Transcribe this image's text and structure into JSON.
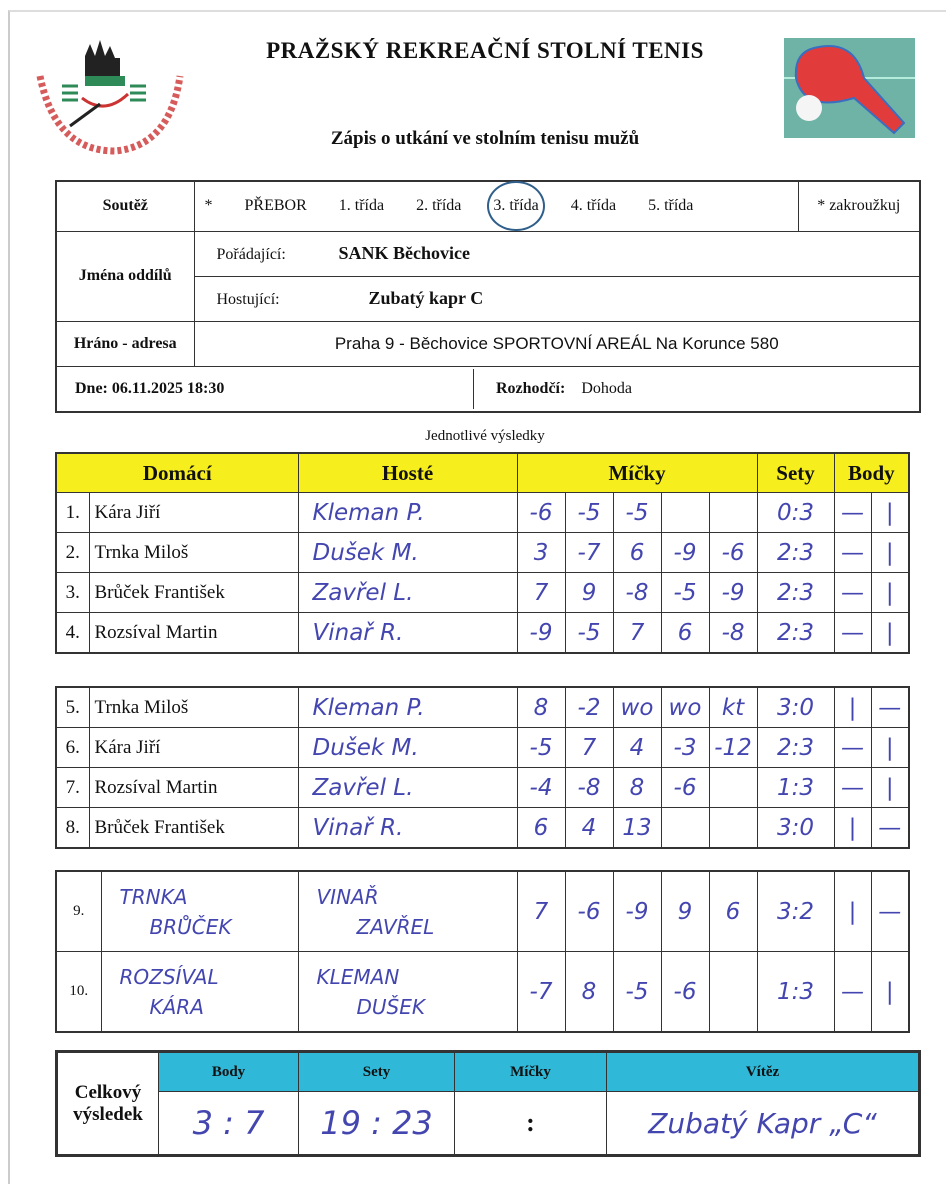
{
  "header": {
    "title": "PRAŽSKÝ  REKREAČNÍ  STOLNÍ  TENIS",
    "subtitle": "Zápis o utkání ve stolním tenisu mužů",
    "logo_text": "PRST – PRAŽSKÝ REKREAČNÍ STOLNÍ TENIS"
  },
  "info": {
    "soutez_label": "Soutěž",
    "star": "*",
    "options": [
      "PŘEBOR",
      "1. třída",
      "2. třída",
      "3. třída",
      "4. třída",
      "5. třída"
    ],
    "selected_option": "3. třída",
    "note": "* zakroužkuj",
    "jmena_label": "Jména  oddílů",
    "poradajici_label": "Pořádající:",
    "poradajici": "SANK Běchovice",
    "hostujici_label": "Hostující:",
    "hostujici": "Zubatý kapr C",
    "hrano_label": "Hráno - adresa",
    "adresa": "Praha 9 - Běchovice SPORTOVNÍ AREÁL Na Korunce 580",
    "dne_label": "Dne:",
    "dne": "06.11.2025 18:30",
    "rozhodci_label": "Rozhodčí:",
    "rozhodci": "Dohoda"
  },
  "results_caption": "Jednotlivé výsledky",
  "columns": {
    "domaci": "Domácí",
    "hoste": "Hosté",
    "micky": "Míčky",
    "sety": "Sety",
    "body": "Body"
  },
  "blocks": [
    [
      {
        "n": "1.",
        "home": "Kára Jiří",
        "guest": "Kleman P.",
        "balls": [
          "-6",
          "-5",
          "-5",
          "",
          ""
        ],
        "sets": "0:3",
        "b1": "—",
        "b2": "|"
      },
      {
        "n": "2.",
        "home": "Trnka Miloš",
        "guest": "Dušek M.",
        "balls": [
          "3",
          "-7",
          "6",
          "-9",
          "-6"
        ],
        "sets": "2:3",
        "b1": "—",
        "b2": "|"
      },
      {
        "n": "3.",
        "home": "Brůček František",
        "guest": "Zavřel L.",
        "balls": [
          "7",
          "9",
          "-8",
          "-5",
          "-9"
        ],
        "sets": "2:3",
        "b1": "—",
        "b2": "|"
      },
      {
        "n": "4.",
        "home": "Rozsíval Martin",
        "guest": "Vinař R.",
        "balls": [
          "-9",
          "-5",
          "7",
          "6",
          "-8"
        ],
        "sets": "2:3",
        "b1": "—",
        "b2": "|"
      }
    ],
    [
      {
        "n": "5.",
        "home": "Trnka Miloš",
        "guest": "Kleman P.",
        "balls": [
          "8",
          "-2",
          "wo",
          "wo",
          "kt"
        ],
        "sets": "3:0",
        "b1": "|",
        "b2": "—"
      },
      {
        "n": "6.",
        "home": "Kára Jiří",
        "guest": "Dušek M.",
        "balls": [
          "-5",
          "7",
          "4",
          "-3",
          "-12"
        ],
        "sets": "2:3",
        "b1": "—",
        "b2": "|"
      },
      {
        "n": "7.",
        "home": "Rozsíval Martin",
        "guest": "Zavřel L.",
        "balls": [
          "-4",
          "-8",
          "8",
          "-6",
          ""
        ],
        "sets": "1:3",
        "b1": "—",
        "b2": "|"
      },
      {
        "n": "8.",
        "home": "Brůček František",
        "guest": "Vinař R.",
        "balls": [
          "6",
          "4",
          "13",
          "",
          ""
        ],
        "sets": "3:0",
        "b1": "|",
        "b2": "—"
      }
    ]
  ],
  "doubles": [
    {
      "n": "9.",
      "home1": "TRNKA",
      "home2": "BRŮČEK",
      "guest1": "VINAŘ",
      "guest2": "ZAVŘEL",
      "balls": [
        "7",
        "-6",
        "-9",
        "9",
        "6"
      ],
      "sets": "3:2",
      "b1": "|",
      "b2": "—"
    },
    {
      "n": "10.",
      "home1": "ROZSÍVAL",
      "home2": "KÁRA",
      "guest1": "KLEMAN",
      "guest2": "DUŠEK",
      "balls": [
        "-7",
        "8",
        "-5",
        "-6",
        ""
      ],
      "sets": "1:3",
      "b1": "—",
      "b2": "|"
    }
  ],
  "total": {
    "label": "Celkový výsledek",
    "body_h": "Body",
    "sety_h": "Sety",
    "micky_h": "Míčky",
    "vitez_h": "Vítěz",
    "body": "3 : 7",
    "sety": "19 : 23",
    "micky": ":",
    "vitez": "Zubatý Kapr „C“"
  },
  "colors": {
    "header_yellow": "#f7ef1d",
    "total_cyan": "#2fb8d8",
    "ink": "#4446b0"
  }
}
